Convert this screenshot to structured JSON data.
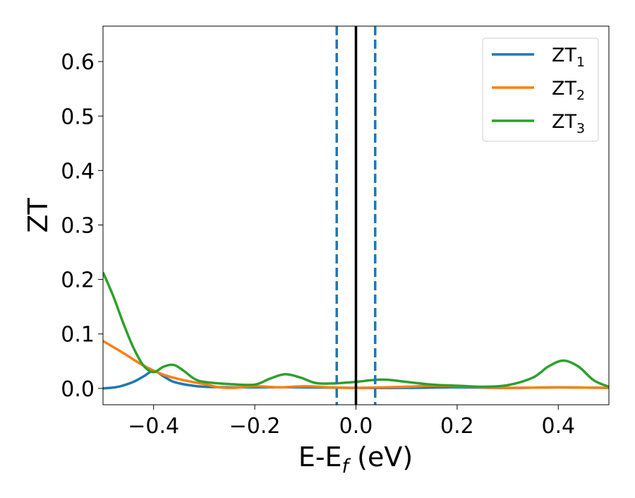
{
  "chart_data": {
    "type": "line",
    "title": "",
    "xlabel_main": "E-E",
    "xlabel_sub": "f",
    "xlabel_unit": " (eV)",
    "ylabel": "ZT",
    "xlim": [
      -0.5,
      0.5
    ],
    "ylim": [
      -0.03,
      0.665
    ],
    "xticks": [
      -0.4,
      -0.2,
      0.0,
      0.2,
      0.4
    ],
    "xtick_labels": [
      "−0.4",
      "−0.2",
      "0.0",
      "0.2",
      "0.4"
    ],
    "yticks": [
      0.0,
      0.1,
      0.2,
      0.3,
      0.4,
      0.5,
      0.6
    ],
    "ytick_labels": [
      "0.0",
      "0.1",
      "0.2",
      "0.3",
      "0.4",
      "0.5",
      "0.6"
    ],
    "grid": false,
    "legend_position": "top-right",
    "vlines": [
      {
        "x": 0.0,
        "style": "solid",
        "color": "#000000"
      },
      {
        "x": -0.038,
        "style": "dashed",
        "color": "#1f77b4"
      },
      {
        "x": 0.038,
        "style": "dashed",
        "color": "#1f77b4"
      }
    ],
    "series": [
      {
        "name_base": "ZT",
        "name_sub": "1",
        "color": "#1f77b4",
        "x": [
          -0.5,
          -0.47,
          -0.44,
          -0.42,
          -0.4,
          -0.38,
          -0.36,
          -0.33,
          -0.3,
          -0.25,
          -0.2,
          -0.1,
          0.0,
          0.1,
          0.2,
          0.3,
          0.4,
          0.5
        ],
        "y": [
          0.0,
          0.003,
          0.012,
          0.022,
          0.032,
          0.022,
          0.012,
          0.006,
          0.003,
          0.002,
          0.002,
          0.002,
          0.001,
          0.001,
          0.002,
          0.001,
          0.002,
          0.001
        ]
      },
      {
        "name_base": "ZT",
        "name_sub": "2",
        "color": "#ff7f0e",
        "x": [
          -0.5,
          -0.46,
          -0.42,
          -0.38,
          -0.34,
          -0.3,
          -0.27,
          -0.24,
          -0.2,
          -0.15,
          -0.1,
          -0.05,
          0.0,
          0.05,
          0.1,
          0.15,
          0.2,
          0.25,
          0.3,
          0.4,
          0.5
        ],
        "y": [
          0.087,
          0.065,
          0.042,
          0.025,
          0.015,
          0.008,
          0.002,
          0.001,
          0.004,
          0.002,
          0.004,
          0.002,
          0.001,
          0.002,
          0.003,
          0.005,
          0.004,
          0.002,
          0.001,
          0.002,
          0.001
        ]
      },
      {
        "name_base": "ZT",
        "name_sub": "3",
        "color": "#2ca02c",
        "x": [
          -0.5,
          -0.48,
          -0.46,
          -0.44,
          -0.42,
          -0.4,
          -0.38,
          -0.36,
          -0.34,
          -0.32,
          -0.3,
          -0.25,
          -0.2,
          -0.17,
          -0.14,
          -0.11,
          -0.08,
          -0.05,
          0.0,
          0.03,
          0.06,
          0.1,
          0.15,
          0.2,
          0.25,
          0.3,
          0.35,
          0.38,
          0.41,
          0.44,
          0.47,
          0.5
        ],
        "y": [
          0.213,
          0.17,
          0.12,
          0.075,
          0.042,
          0.03,
          0.04,
          0.043,
          0.032,
          0.018,
          0.012,
          0.008,
          0.007,
          0.018,
          0.026,
          0.02,
          0.01,
          0.009,
          0.012,
          0.015,
          0.016,
          0.012,
          0.007,
          0.005,
          0.003,
          0.006,
          0.02,
          0.04,
          0.051,
          0.04,
          0.015,
          0.003
        ]
      }
    ]
  }
}
